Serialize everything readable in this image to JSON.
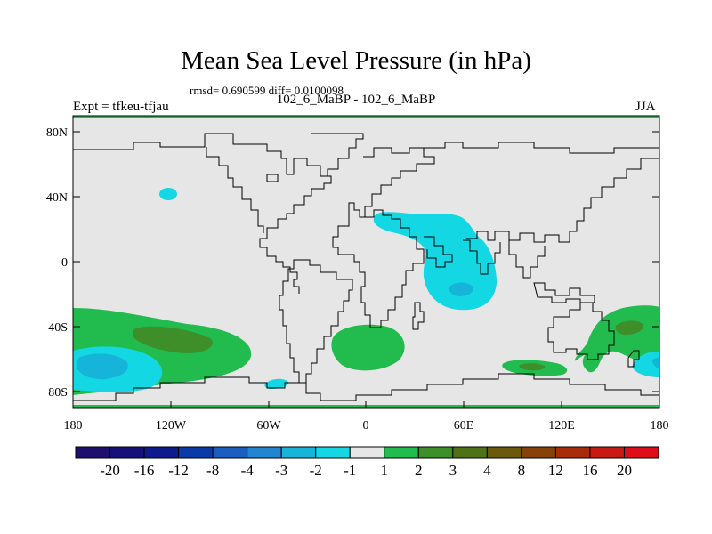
{
  "title": "Mean Sea Level Pressure (in hPa)",
  "stats": "rmsd= 0.690599 diff= 0.0100098",
  "subtitle": "102_6_MaBP - 102_6_MaBP",
  "left_label": "Expt = tfkeu-tfjau",
  "right_label": "JJA",
  "x_ticks": [
    "180",
    "120W",
    "60W",
    "0",
    "60E",
    "120E",
    "180"
  ],
  "y_ticks": [
    "80N",
    "40N",
    "0",
    "40S",
    "80S"
  ],
  "colorbar": {
    "colors": [
      "#1e0f6e",
      "#16107a",
      "#0f1a8c",
      "#0a3aa8",
      "#1a5fc0",
      "#2186cf",
      "#15b4d8",
      "#13d7e2",
      "#e6e6e6",
      "#22bb4e",
      "#3e8f29",
      "#4f7217",
      "#6b5a0b",
      "#874208",
      "#a82b0a",
      "#c81a12",
      "#dd0d1a"
    ],
    "labels": [
      "-20",
      "-16",
      "-12",
      "-8",
      "-4",
      "-3",
      "-2",
      "-1",
      "1",
      "2",
      "3",
      "4",
      "8",
      "12",
      "16",
      "20"
    ]
  },
  "chart_data": {
    "type": "heatmap",
    "title": "Mean Sea Level Pressure (in hPa)",
    "subtitle": "102_6_MaBP - 102_6_MaBP",
    "x_range": [
      -180,
      180
    ],
    "y_range": [
      -90,
      90
    ],
    "x_ticks": [
      "180",
      "120W",
      "60W",
      "0",
      "60E",
      "120E",
      "180"
    ],
    "y_ticks": [
      "80N",
      "40N",
      "0",
      "40S",
      "80S"
    ],
    "background_level": "-1 to 1",
    "anomalies": [
      {
        "region": "South Pacific high-latitude band",
        "lon": [
          -180,
          -110
        ],
        "lat": [
          -78,
          -28
        ],
        "level": "1 to 3"
      },
      {
        "region": "South Pacific core",
        "lon": [
          -160,
          -125
        ],
        "lat": [
          -58,
          -38
        ],
        "level": "3 to 4"
      },
      {
        "region": "Southeast Pacific low",
        "lon": [
          -180,
          -140
        ],
        "lat": [
          -80,
          -56
        ],
        "level": "-3 to -1"
      },
      {
        "region": "Southeast Pacific low core",
        "lon": [
          -175,
          -150
        ],
        "lat": [
          -74,
          -60
        ],
        "level": "-4 to -3"
      },
      {
        "region": "North Pacific small low",
        "lon": [
          -127,
          -117
        ],
        "lat": [
          38,
          46
        ],
        "level": "-2 to -1"
      },
      {
        "region": "Drake Passage small low",
        "lon": [
          -62,
          -48
        ],
        "lat": [
          -81,
          -74
        ],
        "level": "-2 to -1"
      },
      {
        "region": "South Atlantic",
        "lon": [
          -20,
          23
        ],
        "lat": [
          -60,
          -38
        ],
        "level": "1 to 2"
      },
      {
        "region": "Asia to Indian Ocean",
        "lon": [
          5,
          80
        ],
        "lat": [
          -30,
          31
        ],
        "level": "-2 to -1"
      },
      {
        "region": "Indian Ocean core",
        "lon": [
          55,
          68
        ],
        "lat": [
          -20,
          -14
        ],
        "level": "-3 to -2"
      },
      {
        "region": "Southern Indian Ocean",
        "lon": [
          83,
          125
        ],
        "lat": [
          -70,
          -60
        ],
        "level": "1 to 3"
      },
      {
        "region": "Southwest Pacific",
        "lon": [
          134,
          180
        ],
        "lat": [
          -70,
          -26
        ],
        "level": "1 to 3"
      },
      {
        "region": "Southwest Pacific core",
        "lon": [
          156,
          175
        ],
        "lat": [
          -45,
          -36
        ],
        "level": "3 to 4"
      },
      {
        "region": "Southern Ocean low",
        "lon": [
          160,
          180
        ],
        "lat": [
          -70,
          -52
        ],
        "level": "-3 to -1"
      }
    ]
  }
}
